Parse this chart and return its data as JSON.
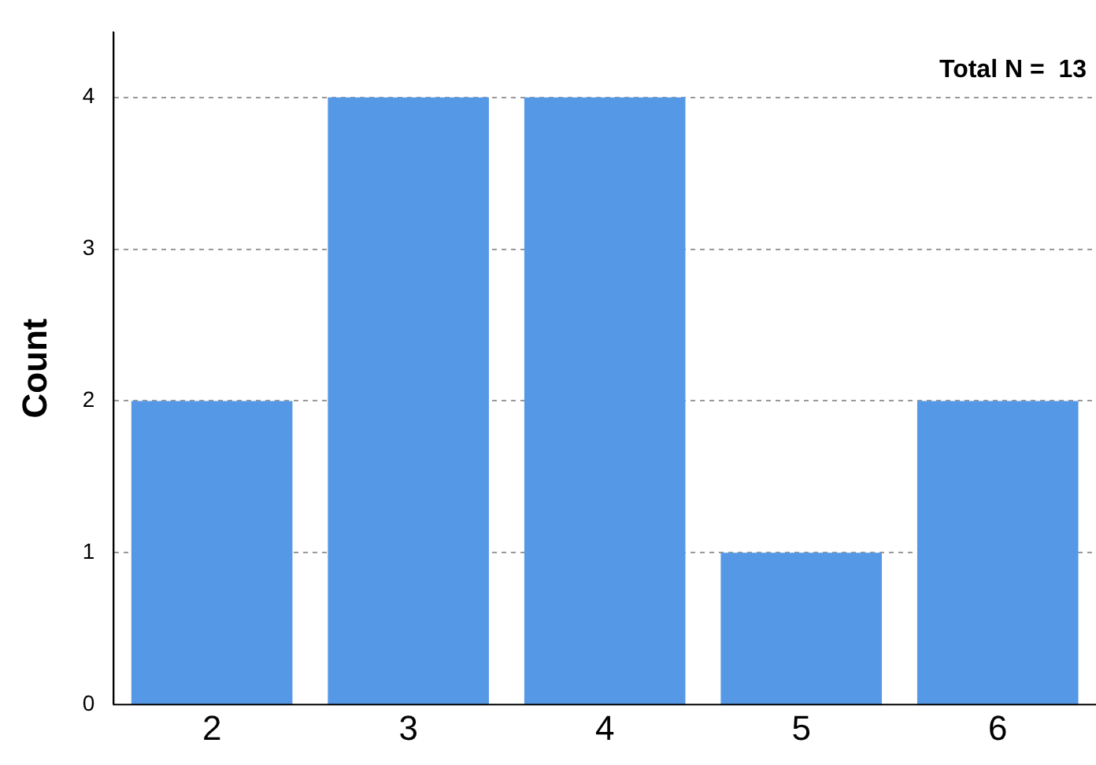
{
  "chart_data": {
    "type": "bar",
    "ylabel": "Count",
    "annotations": [
      "Total N =  13"
    ],
    "categories": [
      "2",
      "3",
      "4",
      "5",
      "6"
    ],
    "values": [
      2,
      4,
      4,
      1,
      2
    ],
    "color": "#5599e6",
    "ylim": [
      0,
      4.43
    ],
    "yticks": [
      0,
      1,
      2,
      3,
      4
    ],
    "grid": "y"
  }
}
